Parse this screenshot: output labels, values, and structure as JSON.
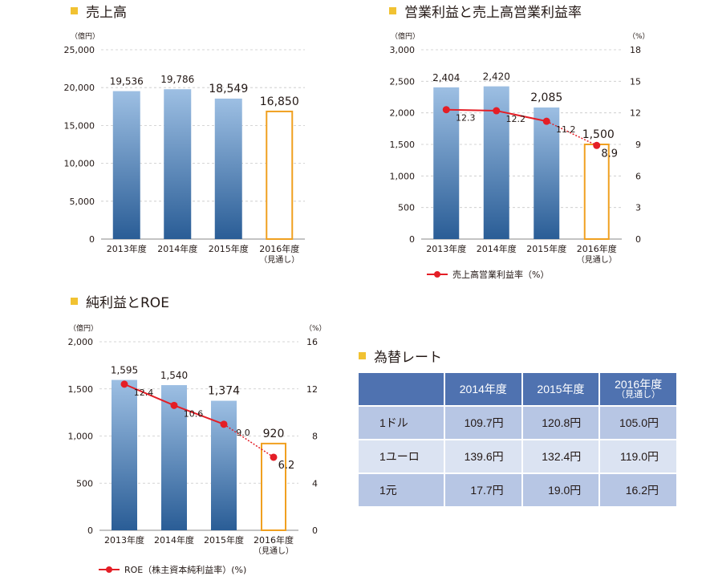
{
  "sections": {
    "sales": "売上高",
    "op": "営業利益と売上高営業利益率",
    "net": "純利益とROE",
    "fx": "為替レート"
  },
  "units": {
    "oku": "（億円）",
    "pct": "（%）"
  },
  "legends": {
    "op_margin": "売上高営業利益率（%）",
    "roe": "ROE（株主資本純利益率）(%)"
  },
  "chart_data": [
    {
      "type": "bar",
      "title": "売上高",
      "ylabel": "（億円）",
      "categories": [
        "2013年度",
        "2014年度",
        "2015年度",
        "2016年度"
      ],
      "category_notes": [
        "",
        "",
        "",
        "（見通し）"
      ],
      "values": [
        19536,
        19786,
        18549,
        16850
      ],
      "value_labels": [
        "19,536",
        "19,786",
        "18,549",
        "16,850"
      ],
      "ylim": [
        0,
        25000
      ],
      "yticks": [
        "0",
        "5,000",
        "10,000",
        "15,000",
        "20,000",
        "25,000"
      ],
      "forecast_index": 3,
      "grid": true,
      "colors": {
        "bar_top": "#9dbfe3",
        "bar_bottom": "#2a5d96",
        "forecast": "#f0a020"
      }
    },
    {
      "type": "bar+line",
      "title": "営業利益と売上高営業利益率",
      "ylabel": "（億円）",
      "y2label": "（%）",
      "categories": [
        "2013年度",
        "2014年度",
        "2015年度",
        "2016年度"
      ],
      "category_notes": [
        "",
        "",
        "",
        "（見通し）"
      ],
      "values": [
        2404,
        2420,
        2085,
        1500
      ],
      "value_labels": [
        "2,404",
        "2,420",
        "2,085",
        "1,500"
      ],
      "line_values": [
        12.3,
        12.2,
        11.2,
        8.9
      ],
      "line_labels": [
        "12.3",
        "12.2",
        "11.2",
        "8.9"
      ],
      "ylim": [
        0,
        3000
      ],
      "yticks": [
        "0",
        "500",
        "1,000",
        "1,500",
        "2,000",
        "2,500",
        "3,000"
      ],
      "y2lim": [
        0,
        18
      ],
      "y2ticks": [
        "0",
        "3",
        "6",
        "9",
        "12",
        "15",
        "18"
      ],
      "forecast_index": 3,
      "grid": true,
      "legend_position": "bottom",
      "colors": {
        "bar_top": "#9dbfe3",
        "bar_bottom": "#2a5d96",
        "forecast": "#f0a020",
        "line": "#e41e26"
      }
    },
    {
      "type": "bar+line",
      "title": "純利益とROE",
      "ylabel": "（億円）",
      "y2label": "（%）",
      "categories": [
        "2013年度",
        "2014年度",
        "2015年度",
        "2016年度"
      ],
      "category_notes": [
        "",
        "",
        "",
        "（見通し）"
      ],
      "values": [
        1595,
        1540,
        1374,
        920
      ],
      "value_labels": [
        "1,595",
        "1,540",
        "1,374",
        "920"
      ],
      "line_values": [
        12.4,
        10.6,
        9.0,
        6.2
      ],
      "line_labels": [
        "12.4",
        "10.6",
        "9.0",
        "6.2"
      ],
      "ylim": [
        0,
        2000
      ],
      "yticks": [
        "0",
        "500",
        "1,000",
        "1,500",
        "2,000"
      ],
      "y2lim": [
        0,
        16
      ],
      "y2ticks": [
        "0",
        "4",
        "8",
        "12",
        "16"
      ],
      "forecast_index": 3,
      "grid": true,
      "legend_position": "bottom",
      "colors": {
        "bar_top": "#9dbfe3",
        "bar_bottom": "#2a5d96",
        "forecast": "#f0a020",
        "line": "#e41e26"
      }
    },
    {
      "type": "table",
      "title": "為替レート",
      "columns": [
        "",
        "2014年度",
        "2015年度",
        "2016年度"
      ],
      "column_notes": [
        "",
        "",
        "",
        "（見通し）"
      ],
      "rows": [
        {
          "label": "1ドル",
          "values": [
            "109.7円",
            "120.8円",
            "105.0円"
          ]
        },
        {
          "label": "1ユーロ",
          "values": [
            "139.6円",
            "132.4円",
            "119.0円"
          ]
        },
        {
          "label": "1元",
          "values": [
            "17.7円",
            "19.0円",
            "16.2円"
          ]
        }
      ],
      "colors": {
        "header": "#4f72b0",
        "row_dark": "#b7c6e4",
        "row_light": "#dbe3f2"
      }
    }
  ]
}
